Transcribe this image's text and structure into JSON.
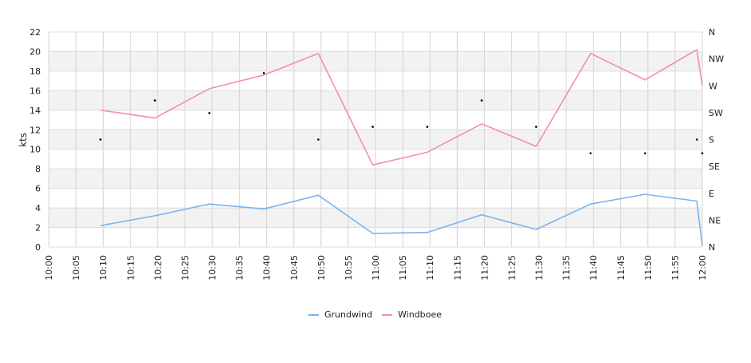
{
  "chart_data": {
    "type": "line",
    "ylabel": "kts",
    "ylim": [
      0,
      22
    ],
    "y_ticks": [
      "0",
      "2",
      "4",
      "6",
      "8",
      "10",
      "12",
      "14",
      "16",
      "18",
      "20",
      "22"
    ],
    "x_ticks": [
      "10:00",
      "10:05",
      "10:10",
      "10:15",
      "10:20",
      "10:25",
      "10:30",
      "10:35",
      "10:40",
      "10:45",
      "10:50",
      "10:55",
      "11:00",
      "11:05",
      "11:10",
      "11:15",
      "11:20",
      "11:25",
      "11:30",
      "11:35",
      "11:40",
      "11:45",
      "11:50",
      "11:55",
      "12:00"
    ],
    "x_range_minutes": [
      0,
      120
    ],
    "right_axis": {
      "label": "",
      "ticks": [
        "N",
        "NE",
        "E",
        "SE",
        "S",
        "SW",
        "W",
        "NW",
        "N"
      ]
    },
    "grid": true,
    "legend_position": "bottom-center",
    "series": [
      {
        "name": "Grundwind",
        "color": "#7ab4ee",
        "x_minutes": [
          9.5,
          19.5,
          29.5,
          39.5,
          49.5,
          59.5,
          69.5,
          79.5,
          89.5,
          99.5,
          109.5,
          119.0,
          120.0
        ],
        "values": [
          2.2,
          3.2,
          4.4,
          3.9,
          5.3,
          1.4,
          1.5,
          3.3,
          1.8,
          4.4,
          5.4,
          4.7,
          0.1
        ]
      },
      {
        "name": "Windboee",
        "color": "#f28cc0",
        "x_minutes": [
          9.5,
          19.5,
          29.5,
          39.5,
          49.5,
          59.5,
          69.5,
          79.5,
          89.5,
          99.5,
          109.5,
          119.0,
          120.0
        ],
        "values": [
          14.0,
          13.2,
          16.2,
          17.6,
          19.8,
          8.4,
          9.7,
          12.6,
          10.3,
          19.8,
          17.1,
          20.2,
          16.5
        ]
      }
    ],
    "direction_points": {
      "x_minutes": [
        9.5,
        19.5,
        29.5,
        39.5,
        49.5,
        59.5,
        69.5,
        79.5,
        89.5,
        99.5,
        109.5,
        119.0,
        120.0
      ],
      "values": [
        11.0,
        15.0,
        13.7,
        17.8,
        11.0,
        12.3,
        12.3,
        15.0,
        12.3,
        9.6,
        9.6,
        11.0,
        9.6
      ]
    }
  }
}
